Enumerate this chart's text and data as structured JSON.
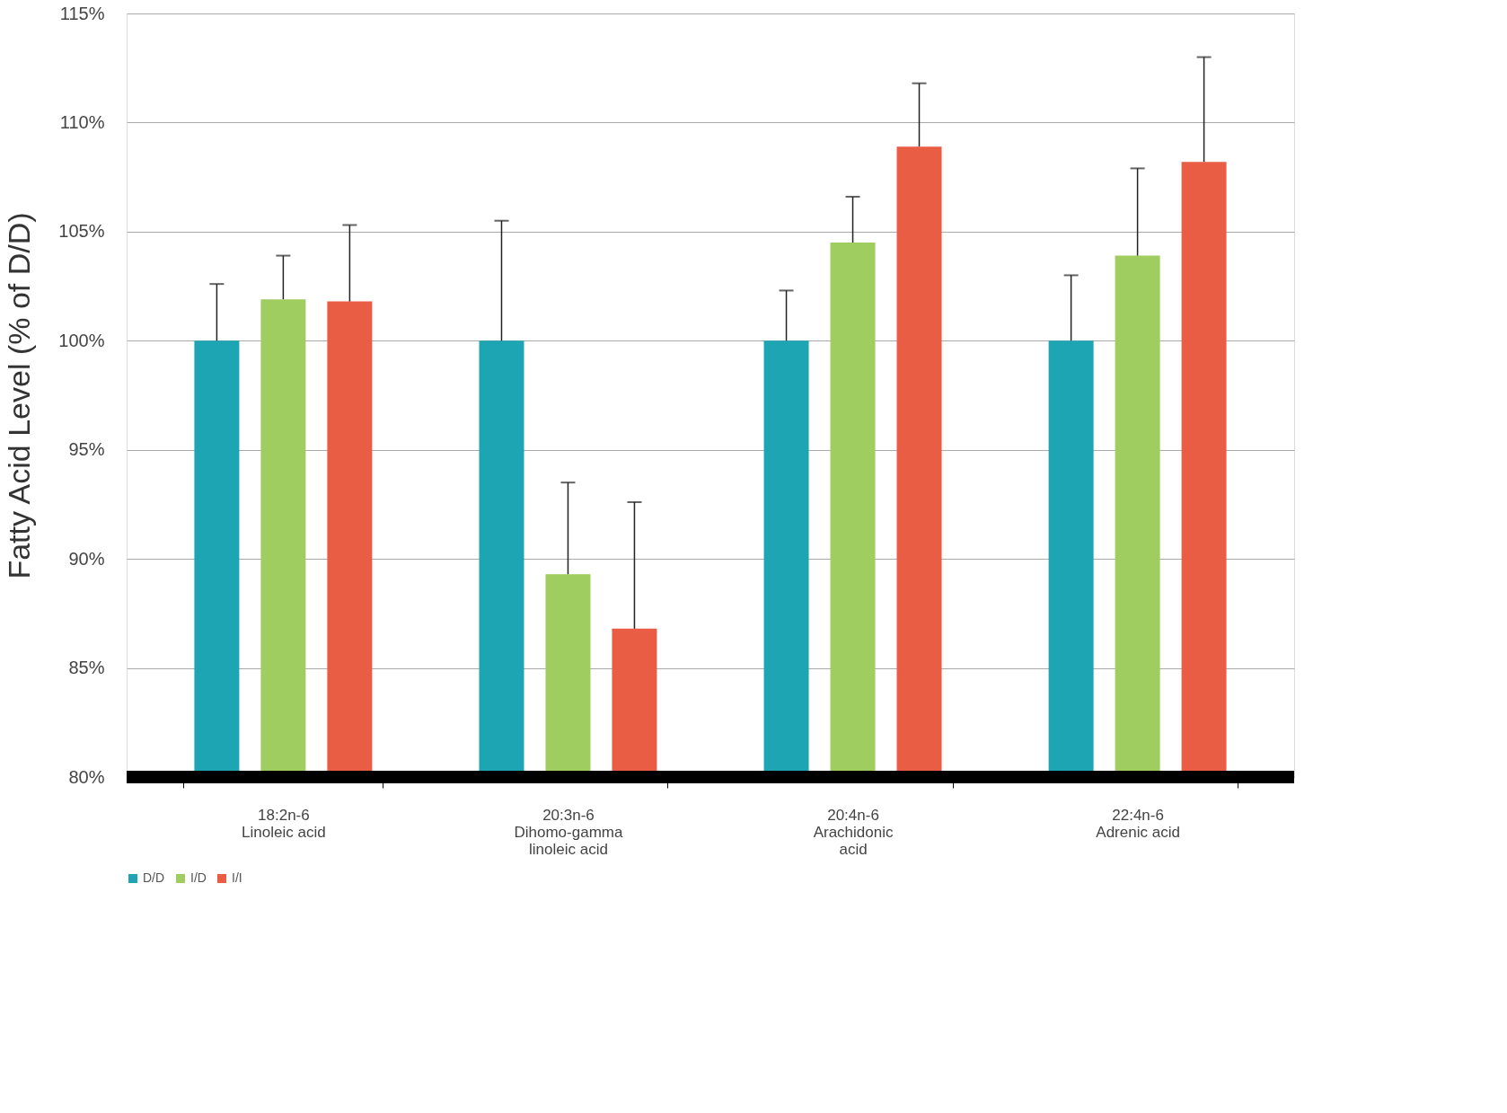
{
  "chart_data": {
    "type": "bar",
    "ylabel": "Fatty Acid Level (% of D/D)",
    "categories": [
      "18:2n-6\nLinoleic acid",
      "20:3n-6\nDihomo-gamma\nlinoleic acid",
      "20:4n-6\nArachidonic\nacid",
      "22:4n-6\nAdrenic acid"
    ],
    "series": [
      {
        "name": "D/D",
        "color": "#1ea5b4",
        "values": [
          100,
          100,
          100,
          100
        ],
        "errors": [
          [
            100,
            102.6
          ],
          [
            100,
            105.5
          ],
          [
            100,
            102.3
          ],
          [
            100,
            103.0
          ]
        ]
      },
      {
        "name": "I/D",
        "color": "#9fcd5f",
        "values": [
          101.9,
          89.3,
          104.5,
          103.9
        ],
        "errors": [
          [
            101.9,
            103.9
          ],
          [
            89.3,
            93.5
          ],
          [
            104.5,
            106.6
          ],
          [
            103.9,
            107.9
          ]
        ]
      },
      {
        "name": "I/I",
        "color": "#ea5d45",
        "values": [
          101.8,
          86.8,
          108.9,
          108.2
        ],
        "errors": [
          [
            101.8,
            105.3
          ],
          [
            86.8,
            92.6
          ],
          [
            108.9,
            111.8
          ],
          [
            108.2,
            113.0
          ]
        ]
      }
    ],
    "ylim": [
      80,
      115
    ],
    "yticks": [
      {
        "value": 80,
        "label": "80%"
      },
      {
        "value": 85,
        "label": "85%"
      },
      {
        "value": 90,
        "label": "90%"
      },
      {
        "value": 95,
        "label": "95%"
      },
      {
        "value": 100,
        "label": "100%"
      },
      {
        "value": 105,
        "label": "105%"
      },
      {
        "value": 110,
        "label": "110%"
      },
      {
        "value": 115,
        "label": "115%"
      }
    ],
    "grid": "y",
    "legend": "bottom"
  }
}
